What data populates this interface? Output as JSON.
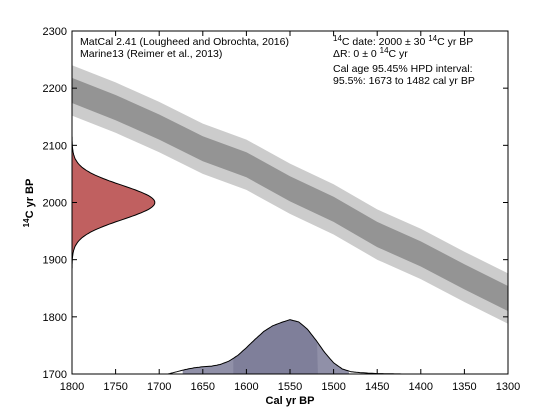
{
  "annotations": {
    "left": [
      "MatCal 2.41 (Lougheed and Obrochta, 2016)",
      "Marine13 (Reimer et al., 2013)"
    ],
    "c14_date": {
      "pre": "",
      "sup": "14",
      "mid": "C date: 2000 ± 30 ",
      "sup2": "14",
      "post": "C yr BP"
    },
    "delta_r": {
      "pre": "ΔR: 0 ± 0 ",
      "sup": "14",
      "post": "C yr"
    },
    "hpd_lines": [
      "Cal age 95.45% HPD interval:",
      "95.5%: 1673 to 1482 cal yr BP"
    ]
  },
  "chart_data": {
    "type": "area",
    "xlabel": "Cal yr BP",
    "ylabel": {
      "sup": "14",
      "text": "C yr BP"
    },
    "xlim": [
      1800,
      1300
    ],
    "ylim": [
      1700,
      2300
    ],
    "x_ticks": [
      "1800",
      "1750",
      "1700",
      "1650",
      "1600",
      "1550",
      "1500",
      "1450",
      "1400",
      "1350",
      "1300"
    ],
    "y_ticks": [
      "1700",
      "1800",
      "1900",
      "2000",
      "2100",
      "2200",
      "2300"
    ],
    "calibration_curve": {
      "x": [
        1800,
        1750,
        1700,
        1650,
        1600,
        1550,
        1500,
        1450,
        1400,
        1350,
        1300
      ],
      "y": [
        2196,
        2166,
        2132,
        2094,
        2066,
        2024,
        1988,
        1944,
        1910,
        1870,
        1832
      ],
      "sigma1": 22,
      "sigma2": 44,
      "color_1sigma": "#949494",
      "color_2sigma": "#cccccc"
    },
    "c14_distribution": {
      "mean": 2000,
      "sd": 30,
      "peak_cal_yr": 1705,
      "color": "#c06060"
    },
    "calibrated_distribution": {
      "x": [
        1800,
        1690,
        1680,
        1670,
        1660,
        1650,
        1640,
        1630,
        1620,
        1610,
        1600,
        1590,
        1580,
        1570,
        1560,
        1550,
        1540,
        1530,
        1520,
        1510,
        1500,
        1490,
        1480,
        1470,
        1460,
        1450,
        1420,
        1300
      ],
      "density": [
        0,
        0,
        0.04,
        0.08,
        0.11,
        0.13,
        0.14,
        0.17,
        0.23,
        0.33,
        0.47,
        0.62,
        0.76,
        0.86,
        0.92,
        0.97,
        0.93,
        0.8,
        0.6,
        0.38,
        0.2,
        0.09,
        0.04,
        0.025,
        0.015,
        0.008,
        0,
        0
      ],
      "hpd_range": [
        1673,
        1482
      ],
      "inner_range": [
        1615,
        1518
      ],
      "color_outer": "#9090a8",
      "color_inner": "#7f7f9a"
    }
  }
}
